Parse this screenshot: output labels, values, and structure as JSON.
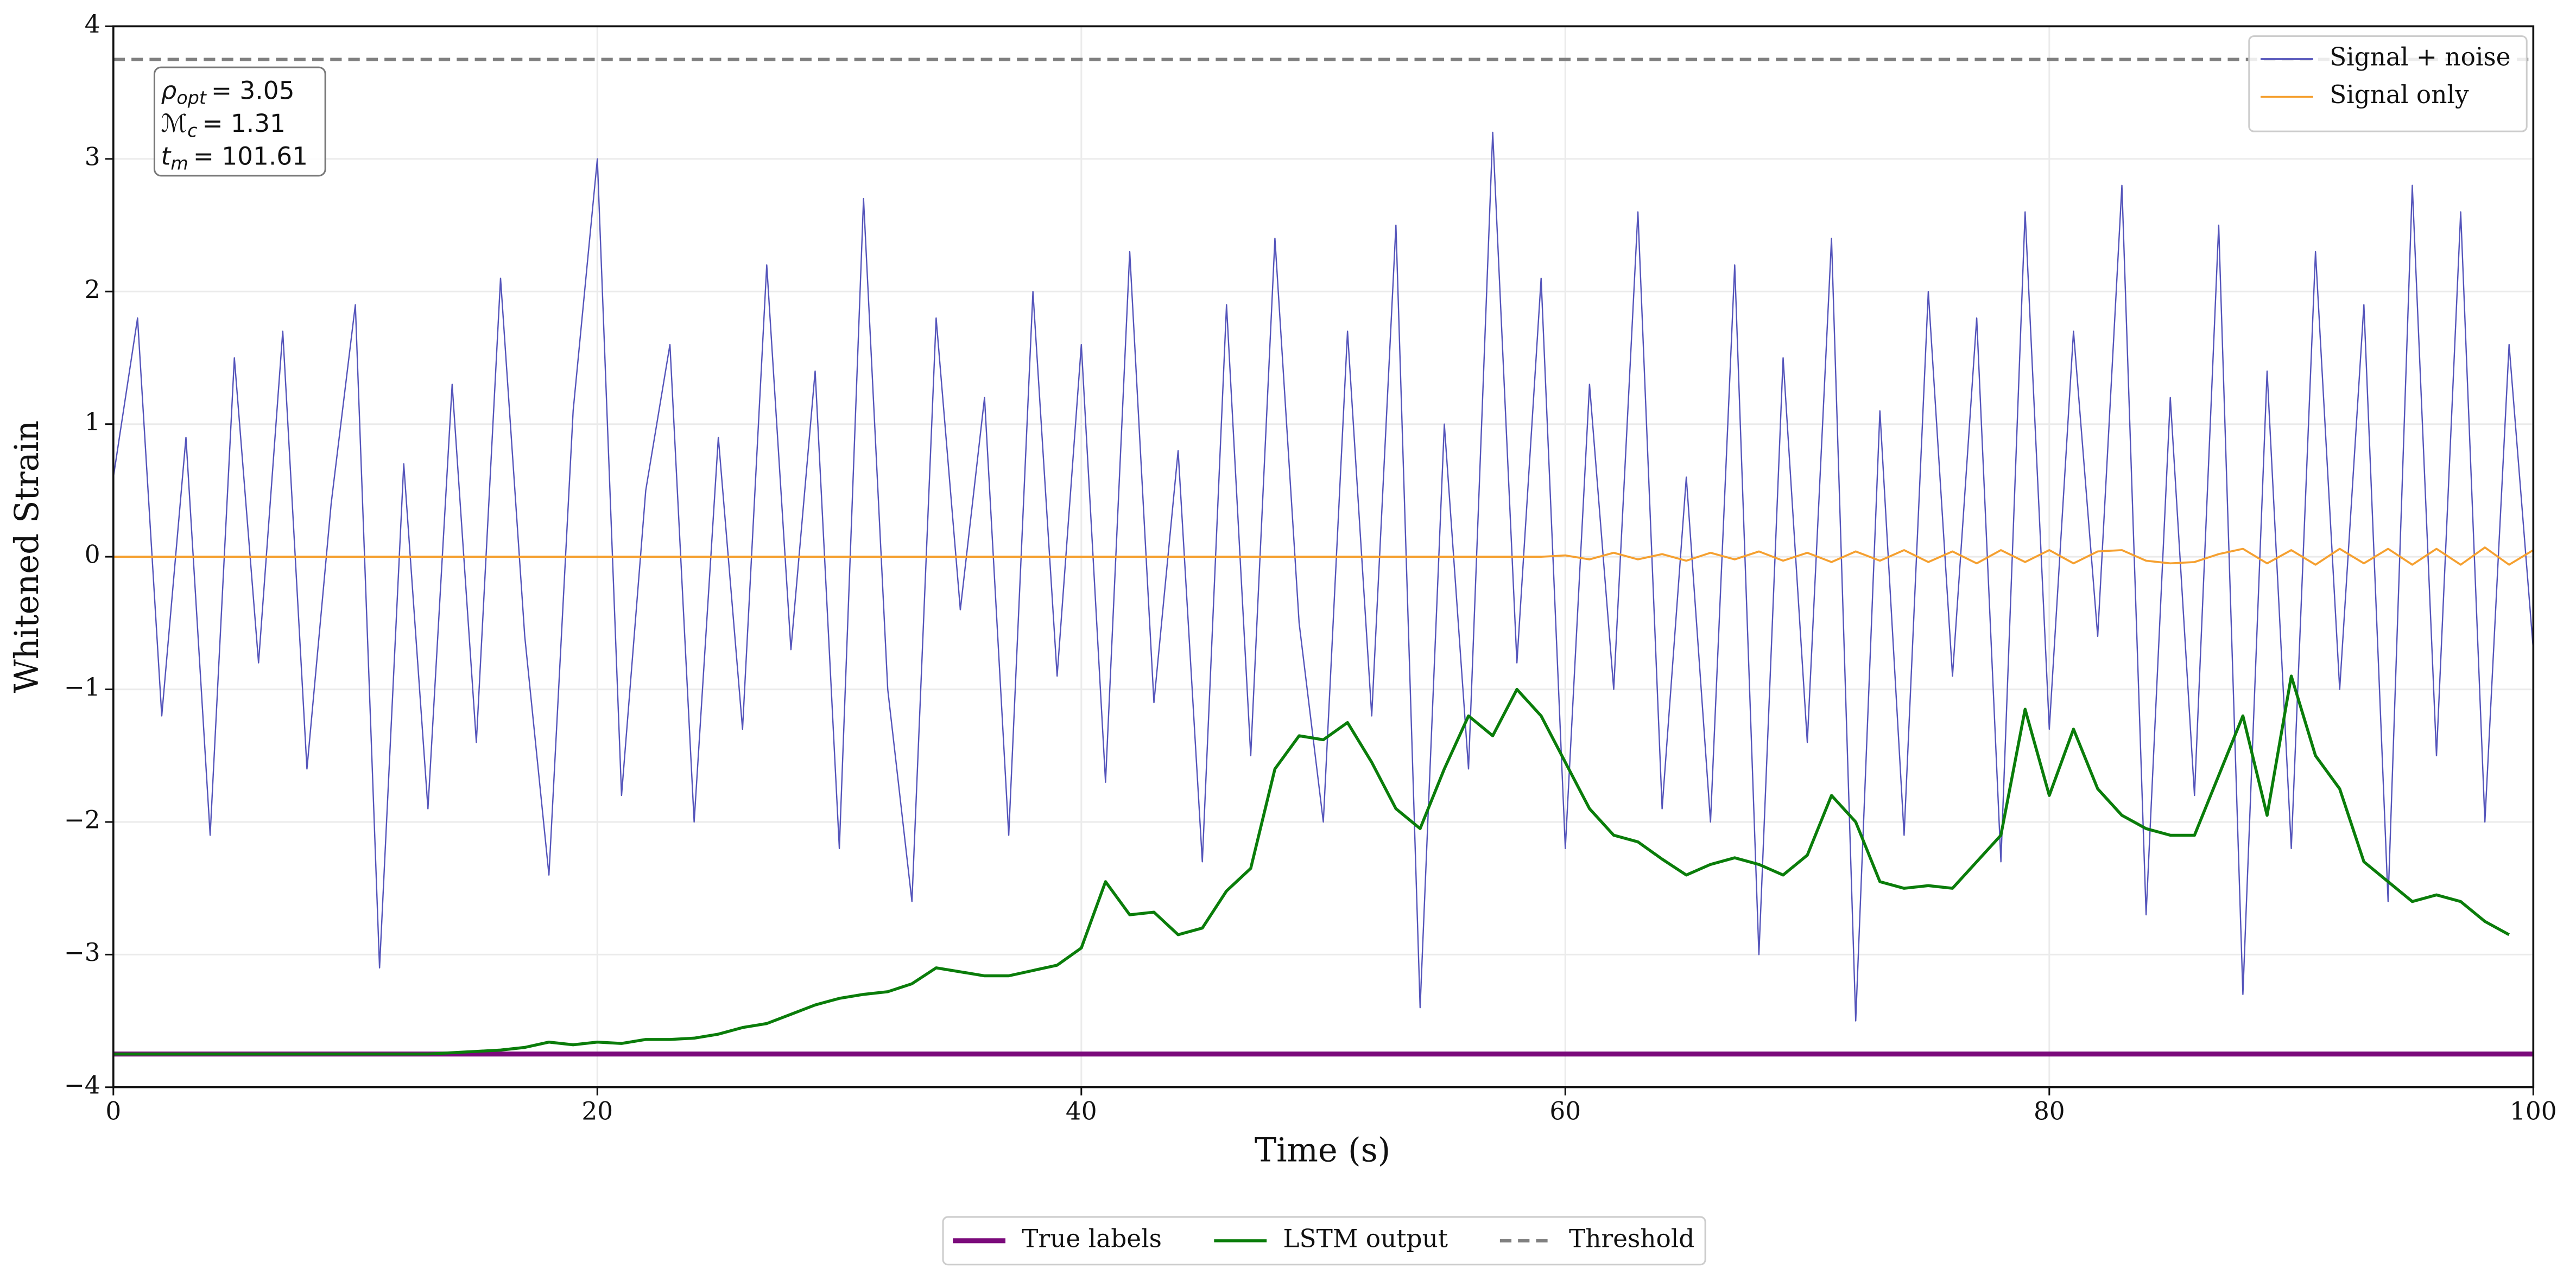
{
  "chart_data": {
    "type": "line",
    "xlabel": "Time (s)",
    "ylabel": "Whitened Strain",
    "xlim": [
      0,
      100
    ],
    "ylim": [
      -4,
      4
    ],
    "xticks": [
      0,
      20,
      40,
      60,
      80,
      100
    ],
    "yticks": [
      {
        "value": -4,
        "label": "−4"
      },
      {
        "value": -3,
        "label": "−3"
      },
      {
        "value": -2,
        "label": "−2"
      },
      {
        "value": -1,
        "label": "−1"
      },
      0,
      1,
      2,
      3,
      4
    ],
    "grid": true,
    "annotation": [
      {
        "symbol": "ρ",
        "sub": "opt",
        "text": "= 3.05"
      },
      {
        "symbol": "ℳ",
        "sub": "c",
        "text": "= 1.31"
      },
      {
        "symbol": "t",
        "sub": "m",
        "text": "= 101.61"
      }
    ],
    "threshold": {
      "name": "Threshold",
      "value": 3.75,
      "color": "#808080",
      "legend": "lower center"
    },
    "series": [
      {
        "name": "Signal + noise",
        "color": "#5555bb",
        "legend": "upper right",
        "x": [
          0,
          1,
          2,
          3,
          4,
          5,
          6,
          7,
          8,
          9,
          10,
          11,
          12,
          13,
          14,
          15,
          16,
          17,
          18,
          19,
          20,
          21,
          22,
          23,
          24,
          25,
          26,
          27,
          28,
          29,
          30,
          31,
          32,
          33,
          34,
          35,
          36,
          37,
          38,
          39,
          40,
          41,
          42,
          43,
          44,
          45,
          46,
          47,
          48,
          49,
          50,
          51,
          52,
          53,
          54,
          55,
          56,
          57,
          58,
          59,
          60,
          61,
          62,
          63,
          64,
          65,
          66,
          67,
          68,
          69,
          70,
          71,
          72,
          73,
          74,
          75,
          76,
          77,
          78,
          79,
          80,
          81,
          82,
          83,
          84,
          85,
          86,
          87,
          88,
          89,
          90,
          91,
          92,
          93,
          94,
          95,
          96,
          97,
          98,
          99,
          100
        ],
        "values": [
          0.6,
          1.8,
          -1.2,
          0.9,
          -2.1,
          1.5,
          -0.8,
          1.7,
          -1.6,
          0.4,
          1.9,
          -3.1,
          0.7,
          -1.9,
          1.3,
          -1.4,
          2.1,
          -0.6,
          -2.4,
          1.1,
          3.0,
          -1.8,
          0.5,
          1.6,
          -2.0,
          0.9,
          -1.3,
          2.2,
          -0.7,
          1.4,
          -2.2,
          2.7,
          -1.0,
          -2.6,
          1.8,
          -0.4,
          1.2,
          -2.1,
          2.0,
          -0.9,
          1.6,
          -1.7,
          2.3,
          -1.1,
          0.8,
          -2.3,
          1.9,
          -1.5,
          2.4,
          -0.5,
          -2.0,
          1.7,
          -1.2,
          2.5,
          -3.4,
          1.0,
          -1.6,
          3.2,
          -0.8,
          2.1,
          -2.2,
          1.3,
          -1.0,
          2.6,
          -1.9,
          0.6,
          -2.0,
          2.2,
          -3.0,
          1.5,
          -1.4,
          2.4,
          -3.5,
          1.1,
          -2.1,
          2.0,
          -0.9,
          1.8,
          -2.3,
          2.6,
          -1.3,
          1.7,
          -0.6,
          2.8,
          -2.7,
          1.2,
          -1.8,
          2.5,
          -3.3,
          1.4,
          -2.2,
          2.3,
          -1.0,
          1.9,
          -2.6,
          2.8,
          -1.5,
          2.6,
          -2.0,
          1.6,
          -0.7
        ]
      },
      {
        "name": "Signal only",
        "color": "#f5a030",
        "legend": "upper right",
        "x": [
          0,
          1,
          2,
          3,
          4,
          5,
          6,
          7,
          8,
          9,
          10,
          11,
          12,
          13,
          14,
          15,
          16,
          17,
          18,
          19,
          20,
          21,
          22,
          23,
          24,
          25,
          26,
          27,
          28,
          29,
          30,
          31,
          32,
          33,
          34,
          35,
          36,
          37,
          38,
          39,
          40,
          41,
          42,
          43,
          44,
          45,
          46,
          47,
          48,
          49,
          50,
          51,
          52,
          53,
          54,
          55,
          56,
          57,
          58,
          59,
          60,
          61,
          62,
          63,
          64,
          65,
          66,
          67,
          68,
          69,
          70,
          71,
          72,
          73,
          74,
          75,
          76,
          77,
          78,
          79,
          80,
          81,
          82,
          83,
          84,
          85,
          86,
          87,
          88,
          89,
          90,
          91,
          92,
          93,
          94,
          95,
          96,
          97,
          98,
          99,
          100
        ],
        "values": [
          0,
          0,
          0,
          0,
          0,
          0,
          0,
          0,
          0,
          0,
          0,
          0,
          0,
          0,
          0,
          0,
          0,
          0,
          0,
          0,
          0,
          0,
          0,
          0,
          0,
          0,
          0,
          0,
          0,
          0,
          0,
          0,
          0,
          0,
          0,
          0,
          0,
          0,
          0,
          0,
          0,
          0,
          0,
          0,
          0,
          0,
          0,
          0,
          0,
          0,
          0,
          0,
          0,
          0,
          0,
          0,
          0,
          0,
          0,
          0,
          0.01,
          -0.02,
          0.03,
          -0.02,
          0.02,
          -0.03,
          0.03,
          -0.02,
          0.04,
          -0.03,
          0.03,
          -0.04,
          0.04,
          -0.03,
          0.05,
          -0.04,
          0.04,
          -0.05,
          0.05,
          -0.04,
          0.05,
          -0.05,
          0.04,
          0.05,
          -0.03,
          -0.05,
          -0.04,
          0.02,
          0.06,
          -0.05,
          0.05,
          -0.06,
          0.06,
          -0.05,
          0.06,
          -0.06,
          0.06,
          -0.06,
          0.07,
          -0.06,
          0.05
        ]
      },
      {
        "name": "True labels",
        "color": "#7b0a7b",
        "legend": "lower center",
        "x": [
          0,
          100
        ],
        "values": [
          -3.75,
          -3.75
        ]
      },
      {
        "name": "LSTM output",
        "color": "#0a7d0a",
        "legend": "lower center",
        "x": [
          0,
          1,
          2,
          3,
          4,
          5,
          6,
          7,
          8,
          9,
          10,
          11,
          12,
          13,
          14,
          15,
          16,
          17,
          18,
          19,
          20,
          21,
          22,
          23,
          24,
          25,
          26,
          27,
          28,
          29,
          30,
          31,
          32,
          33,
          34,
          35,
          36,
          37,
          38,
          39,
          40,
          41,
          42,
          43,
          44,
          45,
          46,
          47,
          48,
          49,
          50,
          51,
          52,
          53,
          54,
          55,
          56,
          57,
          58,
          59,
          60,
          61,
          62,
          63,
          64,
          65,
          66,
          67,
          68,
          69,
          70,
          71,
          72,
          73,
          74,
          75,
          76,
          77,
          78,
          79,
          80,
          81,
          82,
          83,
          84,
          85,
          86,
          87,
          88,
          89,
          90,
          91,
          92,
          93,
          94,
          95,
          96,
          97,
          98,
          99
        ],
        "values": [
          -3.75,
          -3.75,
          -3.75,
          -3.75,
          -3.75,
          -3.75,
          -3.75,
          -3.75,
          -3.75,
          -3.75,
          -3.75,
          -3.75,
          -3.75,
          -3.75,
          -3.74,
          -3.73,
          -3.72,
          -3.7,
          -3.66,
          -3.68,
          -3.66,
          -3.67,
          -3.64,
          -3.64,
          -3.63,
          -3.6,
          -3.55,
          -3.52,
          -3.45,
          -3.38,
          -3.33,
          -3.3,
          -3.28,
          -3.22,
          -3.1,
          -3.13,
          -3.16,
          -3.16,
          -3.12,
          -3.08,
          -2.95,
          -2.45,
          -2.7,
          -2.68,
          -2.85,
          -2.8,
          -2.52,
          -2.35,
          -1.6,
          -1.35,
          -1.38,
          -1.25,
          -1.55,
          -1.9,
          -2.05,
          -1.6,
          -1.2,
          -1.35,
          -1.0,
          -1.2,
          -1.55,
          -1.9,
          -2.1,
          -2.15,
          -2.28,
          -2.4,
          -2.32,
          -2.27,
          -2.32,
          -2.4,
          -2.25,
          -1.8,
          -2.0,
          -2.45,
          -2.5,
          -2.48,
          -2.5,
          -2.3,
          -2.1,
          -1.15,
          -1.8,
          -1.3,
          -1.75,
          -1.95,
          -2.05,
          -2.1,
          -2.1,
          -1.65,
          -1.2,
          -1.95,
          -0.9,
          -1.5,
          -1.75,
          -2.3,
          -2.45,
          -2.6,
          -2.55,
          -2.6,
          -2.75,
          -2.85
        ]
      }
    ]
  }
}
